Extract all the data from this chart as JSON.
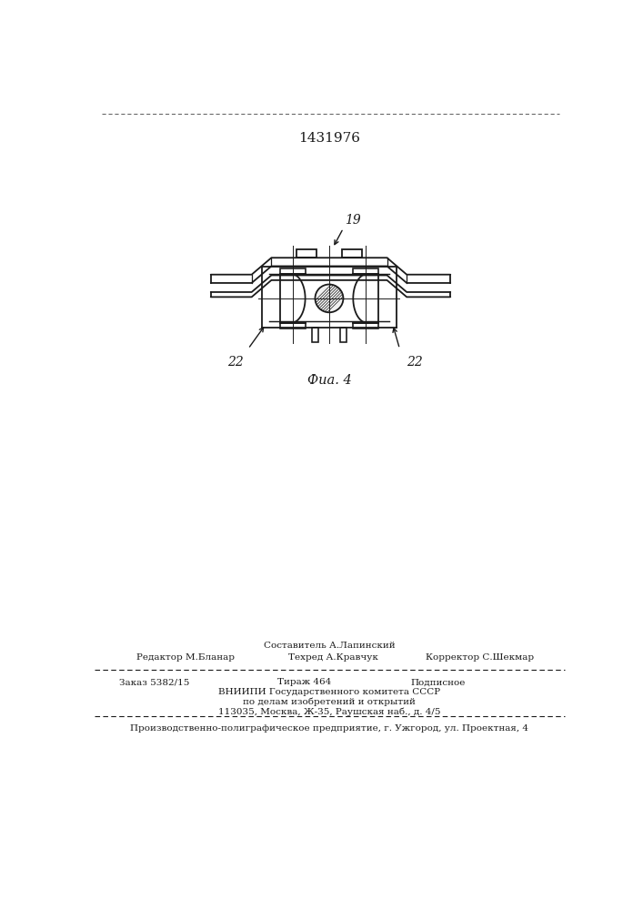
{
  "patent_number": "1431976",
  "fig_label": "Фиа. 4",
  "label_19": "19",
  "label_22_left": "22",
  "label_22_right": "22",
  "bg_color": "#ffffff",
  "line_color": "#1a1a1a",
  "header_line1": "Составитель А.Лапинский",
  "header_line2_left": "Редактор М.Бланар",
  "header_line2_mid": "Техред А.Кравчук",
  "header_line2_right": "Корректор С.Шекмар",
  "footer_line1_left": "Заказ 5382/15",
  "footer_line1_mid": "Тираж 464",
  "footer_line1_right": "Подписное",
  "footer_line2": "ВНИИПИ Государственного комитета СССР",
  "footer_line3": "по делам изобретений и открытий",
  "footer_line4": "113035, Москва, Ж-35, Раушская наб., д. 4/5",
  "footer_last": "Производственно-полиграфическое предприятие, г. Ужгород, ул. Проектная, 4"
}
